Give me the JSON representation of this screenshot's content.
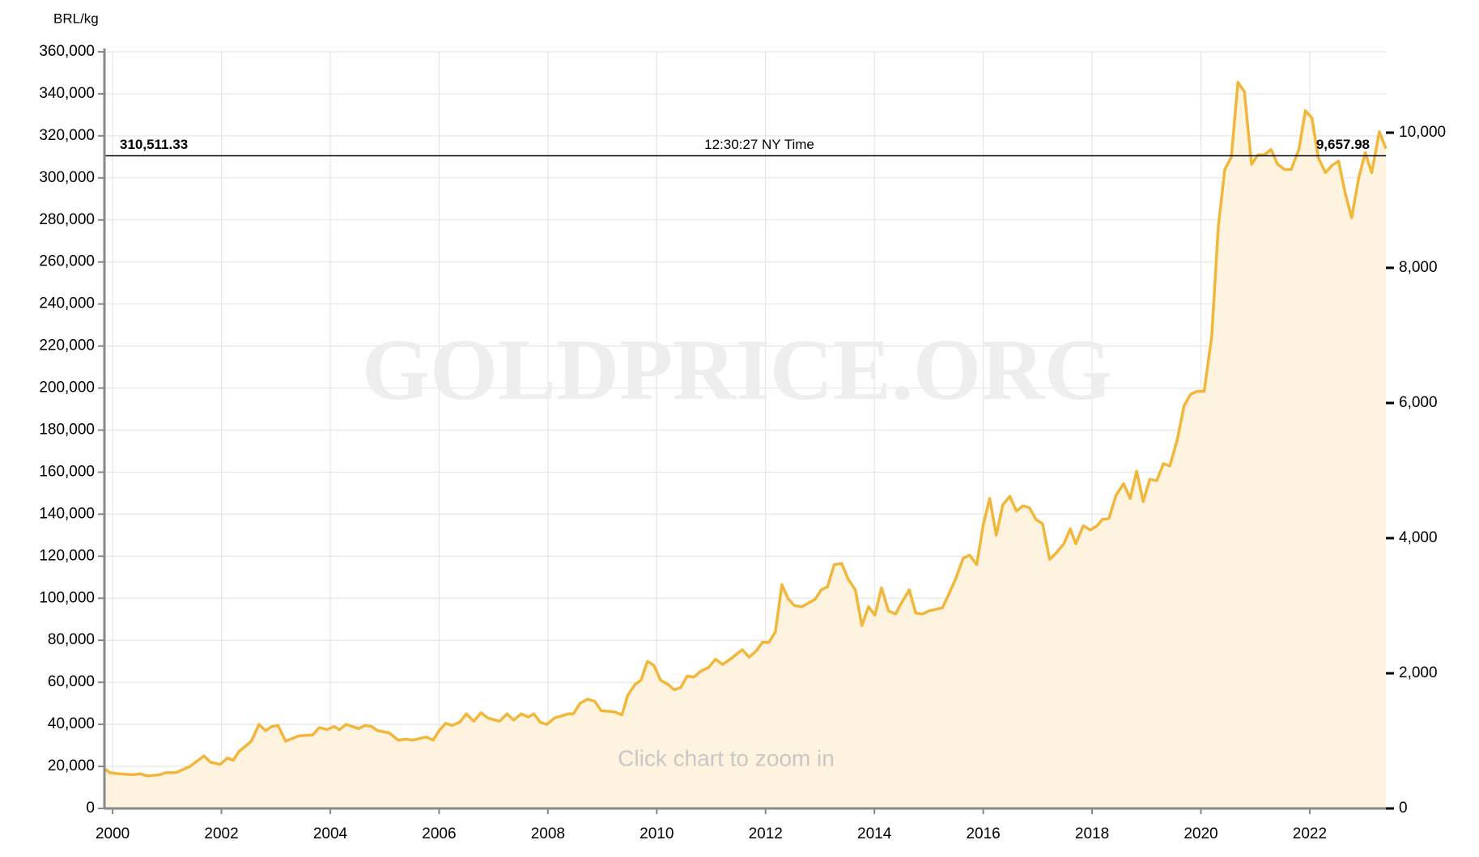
{
  "chart_data": {
    "type": "area",
    "y_axis_label": "BRL/kg",
    "watermark": "GOLDPRICE.ORG",
    "hint": "Click chart to zoom in",
    "color": "#f2b73a",
    "fill_color": "#fdf3de",
    "grid": true,
    "xlim": [
      1999.85,
      2023.4
    ],
    "xticks": [
      2000,
      2002,
      2004,
      2006,
      2008,
      2010,
      2012,
      2014,
      2016,
      2018,
      2020,
      2022
    ],
    "ylim": [
      0,
      360000
    ],
    "yticks": [
      0,
      {
        "value": 20000,
        "label": "20,000"
      },
      {
        "value": 40000,
        "label": "40,000"
      },
      {
        "value": 60000,
        "label": "60,000"
      },
      {
        "value": 80000,
        "label": "80,000"
      },
      {
        "value": 100000,
        "label": "100,000"
      },
      {
        "value": 120000,
        "label": "120,000"
      },
      {
        "value": 140000,
        "label": "140,000"
      },
      {
        "value": 160000,
        "label": "160,000"
      },
      {
        "value": 180000,
        "label": "180,000"
      },
      {
        "value": 200000,
        "label": "200,000"
      },
      {
        "value": 220000,
        "label": "220,000"
      },
      {
        "value": 240000,
        "label": "240,000"
      },
      {
        "value": 260000,
        "label": "260,000"
      },
      {
        "value": 280000,
        "label": "280,000"
      },
      {
        "value": 300000,
        "label": "300,000"
      },
      {
        "value": 320000,
        "label": "320,000"
      },
      {
        "value": 340000,
        "label": "340,000"
      },
      {
        "value": 360000,
        "label": "360,000"
      }
    ],
    "y2lim": [
      0,
      11197
    ],
    "y2ticks": [
      0,
      {
        "value": 2000,
        "label": "2,000"
      },
      {
        "value": 4000,
        "label": "4,000"
      },
      {
        "value": 6000,
        "label": "6,000"
      },
      {
        "value": 8000,
        "label": "8,000"
      },
      {
        "value": 10000,
        "label": "10,000"
      }
    ],
    "current_price": {
      "value": 310511.33,
      "label": "310,511.33"
    },
    "current_price_y2": {
      "value": 9657.98,
      "label": "9,657.98"
    },
    "time_label": "12:30:27 NY Time",
    "x": [
      1999.85,
      1999.95,
      2000.11,
      2000.37,
      2000.51,
      2000.63,
      2000.86,
      2000.98,
      2001.16,
      2001.42,
      2001.68,
      2001.8,
      2001.98,
      2002.11,
      2002.22,
      2002.32,
      2002.55,
      2002.69,
      2002.81,
      2002.93,
      2003.04,
      2003.18,
      2003.42,
      2003.68,
      2003.8,
      2003.94,
      2004.07,
      2004.17,
      2004.29,
      2004.52,
      2004.64,
      2004.76,
      2004.87,
      2005.08,
      2005.25,
      2005.39,
      2005.51,
      2005.77,
      2005.89,
      2006.0,
      2006.12,
      2006.24,
      2006.38,
      2006.5,
      2006.64,
      2006.77,
      2006.9,
      2007.11,
      2007.25,
      2007.37,
      2007.51,
      2007.64,
      2007.74,
      2007.86,
      2007.98,
      2008.12,
      2008.25,
      2008.38,
      2008.47,
      2008.59,
      2008.73,
      2008.86,
      2008.98,
      2009.22,
      2009.36,
      2009.47,
      2009.6,
      2009.71,
      2009.83,
      2009.95,
      2010.07,
      2010.21,
      2010.32,
      2010.44,
      2010.56,
      2010.68,
      2010.82,
      2010.95,
      2011.08,
      2011.21,
      2011.35,
      2011.57,
      2011.7,
      2011.83,
      2011.94,
      2012.06,
      2012.18,
      2012.3,
      2012.41,
      2012.53,
      2012.67,
      2012.77,
      2012.91,
      2013.02,
      2013.14,
      2013.26,
      2013.4,
      2013.52,
      2013.65,
      2013.77,
      2013.89,
      2014.01,
      2014.13,
      2014.26,
      2014.39,
      2014.48,
      2014.64,
      2014.76,
      2014.88,
      2015.0,
      2015.25,
      2015.35,
      2015.49,
      2015.63,
      2015.75,
      2015.88,
      2016.0,
      2016.12,
      2016.24,
      2016.36,
      2016.49,
      2016.61,
      2016.73,
      2016.85,
      2016.97,
      2017.09,
      2017.22,
      2017.34,
      2017.48,
      2017.6,
      2017.7,
      2017.84,
      2017.97,
      2018.09,
      2018.19,
      2018.31,
      2018.44,
      2018.58,
      2018.7,
      2018.82,
      2018.94,
      2019.06,
      2019.19,
      2019.31,
      2019.43,
      2019.57,
      2019.69,
      2019.81,
      2019.93,
      2020.06,
      2020.2,
      2020.32,
      2020.44,
      2020.56,
      2020.68,
      2020.8,
      2020.93,
      2021.05,
      2021.17,
      2021.29,
      2021.41,
      2021.54,
      2021.66,
      2021.8,
      2021.92,
      2022.04,
      2022.16,
      2022.29,
      2022.41,
      2022.53,
      2022.65,
      2022.77,
      2022.9,
      2023.02,
      2023.14,
      2023.28,
      2023.4
    ],
    "values": [
      19000,
      17000,
      16500,
      16000,
      16500,
      15500,
      16000,
      17000,
      17000,
      20000,
      25000,
      22000,
      21000,
      24000,
      23000,
      27000,
      32000,
      40000,
      37000,
      39000,
      39500,
      32000,
      34500,
      35000,
      38500,
      37500,
      39000,
      37500,
      40000,
      38000,
      39500,
      39000,
      37000,
      36000,
      32500,
      33000,
      32500,
      34000,
      32500,
      37000,
      40500,
      39500,
      41000,
      45000,
      41500,
      45500,
      43000,
      41500,
      45000,
      42000,
      45000,
      43500,
      45000,
      41000,
      40000,
      43000,
      44000,
      45000,
      45000,
      50000,
      52000,
      51000,
      46500,
      46000,
      44500,
      54000,
      59000,
      61000,
      70000,
      68000,
      61000,
      59000,
      56500,
      57500,
      63000,
      62500,
      65500,
      67000,
      71000,
      68500,
      71000,
      75500,
      72000,
      75000,
      79000,
      79000,
      84000,
      106500,
      100000,
      96500,
      96000,
      97500,
      99500,
      104000,
      105500,
      116000,
      116500,
      109000,
      104000,
      87000,
      96000,
      92000,
      105000,
      94000,
      92500,
      97000,
      104000,
      93000,
      92500,
      94000,
      95500,
      101000,
      109000,
      119000,
      120500,
      116000,
      135000,
      147500,
      130000,
      144500,
      148500,
      141500,
      144000,
      143000,
      137500,
      135500,
      118500,
      121500,
      126000,
      133000,
      126000,
      134500,
      132500,
      134500,
      137500,
      138000,
      149000,
      154500,
      147500,
      160500,
      146000,
      156500,
      156000,
      164000,
      163000,
      176000,
      191500,
      197000,
      198500,
      198500,
      225000,
      277000,
      304000,
      310000,
      345500,
      341000,
      306500,
      311000,
      311000,
      313500,
      306500,
      304000,
      304000,
      313500,
      332000,
      328500,
      309500,
      302500,
      306000,
      308000,
      293000,
      281000,
      300000,
      312000,
      302500,
      322000,
      314000
    ]
  }
}
